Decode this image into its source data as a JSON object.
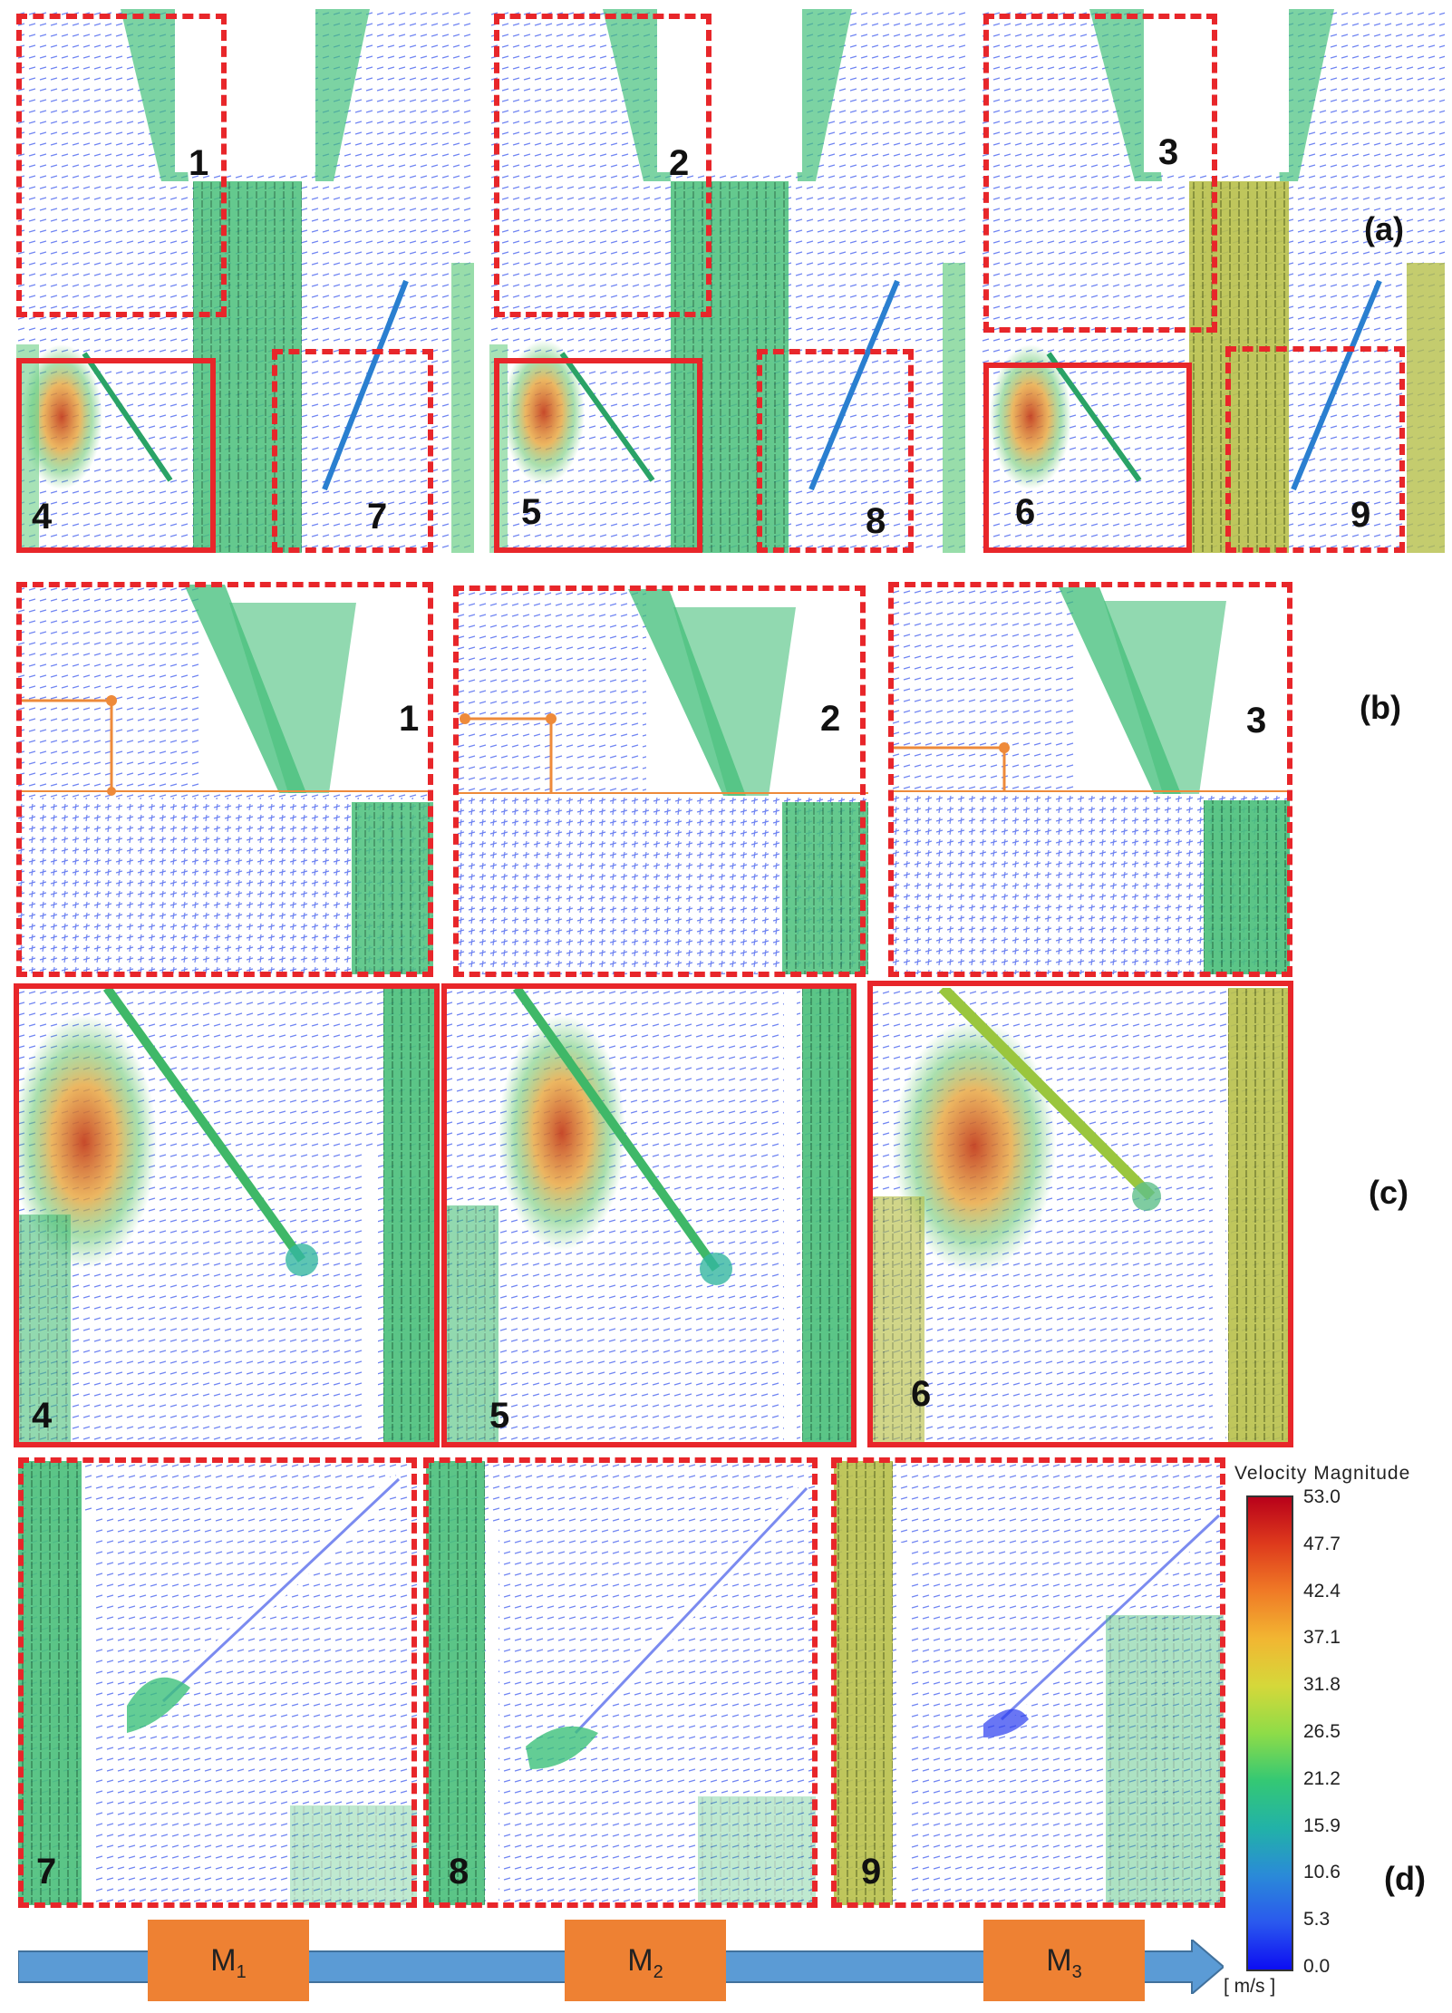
{
  "panel_labels": {
    "a": "(a)",
    "b": "(b)",
    "c": "(c)",
    "d": "(d)"
  },
  "region_numbers": {
    "a": [
      [
        "1",
        "4",
        "7"
      ],
      [
        "2",
        "5",
        "8"
      ],
      [
        "3",
        "6",
        "9"
      ]
    ],
    "b": [
      "1",
      "2",
      "3"
    ],
    "c": [
      "4",
      "5",
      "6"
    ],
    "d": [
      "7",
      "8",
      "9"
    ]
  },
  "models": {
    "m1": {
      "base": "M",
      "sub": "1"
    },
    "m2": {
      "base": "M",
      "sub": "2"
    },
    "m3": {
      "base": "M",
      "sub": "3"
    }
  },
  "colorbar": {
    "title": "Velocity Magnitude",
    "unit": "[ m/s ]",
    "ticks": [
      "53.0",
      "47.7",
      "42.4",
      "37.1",
      "31.8",
      "26.5",
      "21.2",
      "15.9",
      "10.6",
      "5.3",
      "0.0"
    ],
    "colors": [
      "#c0001a",
      "#e0401c",
      "#f07a26",
      "#f4b830",
      "#dcd63a",
      "#9ee04a",
      "#3ccc70",
      "#26b4a4",
      "#2a8cd6",
      "#2c5cec",
      "#1010f0"
    ]
  },
  "colors": {
    "frame": "#e8262a",
    "arrow": "#5b9bd5",
    "model_box": "#ee8133",
    "vector_blue": "#5a6cf0",
    "vector_green": "#2eb36a"
  }
}
